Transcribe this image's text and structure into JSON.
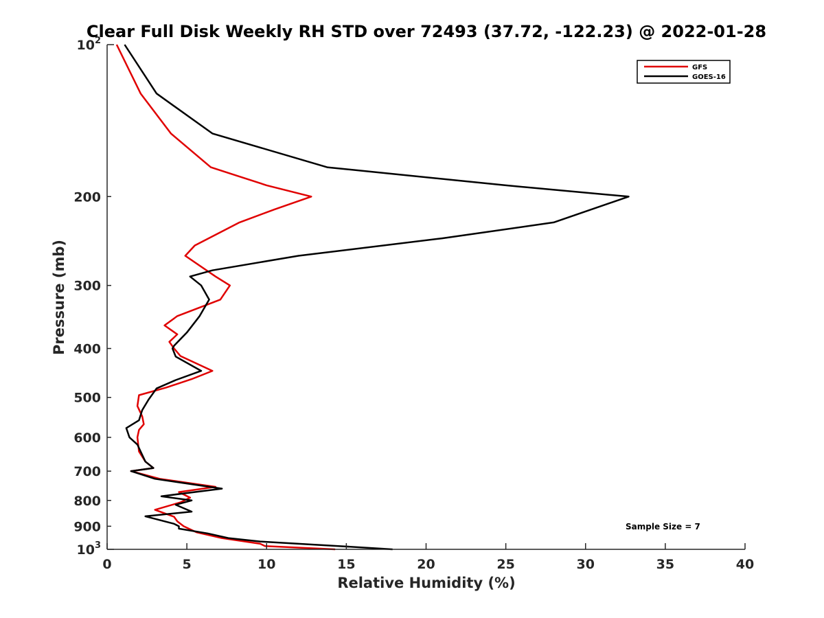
{
  "chart_data": {
    "type": "line",
    "title": "Clear Full Disk Weekly RH STD over 72493 (37.72, -122.23) @ 2022-01-28",
    "xlabel": "Relative Humidity (%)",
    "ylabel": "Pressure (mb)",
    "xlim": [
      0,
      40
    ],
    "ylim": [
      100,
      1000
    ],
    "y_scale": "log",
    "y_reversed": true,
    "grid": false,
    "legend_position": "top-right",
    "x_ticks": [
      0,
      5,
      10,
      15,
      20,
      25,
      30,
      35,
      40
    ],
    "y_ticks": [
      200,
      300,
      400,
      500,
      600,
      700,
      800,
      900
    ],
    "y_tick_labels": [
      "200",
      "300",
      "400",
      "500",
      "600",
      "700",
      "800",
      "900"
    ],
    "y_edge_labels": [
      {
        "value": 100,
        "base": "10",
        "exp": "2"
      },
      {
        "value": 1000,
        "base": "10",
        "exp": "3"
      }
    ],
    "annotation": "Sample Size = 7",
    "series": [
      {
        "name": "GFS",
        "color": "#e00000",
        "points": [
          [
            0.6,
            100
          ],
          [
            2.1,
            125
          ],
          [
            4.0,
            150
          ],
          [
            6.5,
            175
          ],
          [
            10.0,
            190
          ],
          [
            12.8,
            200
          ],
          [
            10.5,
            212
          ],
          [
            8.3,
            225
          ],
          [
            5.5,
            250
          ],
          [
            4.9,
            262
          ],
          [
            6.8,
            288
          ],
          [
            7.7,
            300
          ],
          [
            7.1,
            320
          ],
          [
            4.4,
            345
          ],
          [
            3.6,
            360
          ],
          [
            4.4,
            375
          ],
          [
            3.9,
            388
          ],
          [
            4.2,
            400
          ],
          [
            4.6,
            414
          ],
          [
            6.6,
            443
          ],
          [
            5.3,
            460
          ],
          [
            3.7,
            478
          ],
          [
            2.0,
            495
          ],
          [
            1.9,
            520
          ],
          [
            2.2,
            545
          ],
          [
            2.3,
            565
          ],
          [
            2.0,
            580
          ],
          [
            1.9,
            600
          ],
          [
            2.0,
            640
          ],
          [
            2.4,
            670
          ],
          [
            2.9,
            690
          ],
          [
            1.5,
            700
          ],
          [
            3.3,
            725
          ],
          [
            6.8,
            752
          ],
          [
            4.5,
            770
          ],
          [
            5.2,
            790
          ],
          [
            4.6,
            807
          ],
          [
            3.0,
            835
          ],
          [
            4.2,
            862
          ],
          [
            4.4,
            880
          ],
          [
            4.8,
            900
          ],
          [
            5.6,
            925
          ],
          [
            7.2,
            950
          ],
          [
            9.6,
            975
          ],
          [
            9.9,
            985
          ],
          [
            14.3,
            1000
          ]
        ]
      },
      {
        "name": "GOES-16",
        "color": "#000000",
        "points": [
          [
            1.1,
            100
          ],
          [
            3.1,
            125
          ],
          [
            6.6,
            150
          ],
          [
            13.8,
            175
          ],
          [
            25.0,
            190
          ],
          [
            32.7,
            200
          ],
          [
            28.0,
            225
          ],
          [
            21.0,
            242
          ],
          [
            12.0,
            262
          ],
          [
            6.6,
            280
          ],
          [
            5.2,
            288
          ],
          [
            5.9,
            300
          ],
          [
            6.4,
            320
          ],
          [
            5.8,
            345
          ],
          [
            5.0,
            372
          ],
          [
            4.2,
            395
          ],
          [
            4.1,
            400
          ],
          [
            4.3,
            415
          ],
          [
            5.9,
            443
          ],
          [
            4.3,
            462
          ],
          [
            3.1,
            480
          ],
          [
            2.6,
            505
          ],
          [
            2.2,
            530
          ],
          [
            2.0,
            555
          ],
          [
            1.2,
            575
          ],
          [
            1.4,
            600
          ],
          [
            1.9,
            620
          ],
          [
            2.1,
            640
          ],
          [
            2.4,
            670
          ],
          [
            2.9,
            690
          ],
          [
            1.5,
            700
          ],
          [
            3.0,
            725
          ],
          [
            7.2,
            758
          ],
          [
            3.4,
            785
          ],
          [
            5.3,
            800
          ],
          [
            4.3,
            816
          ],
          [
            5.3,
            842
          ],
          [
            2.4,
            860
          ],
          [
            4.2,
            890
          ],
          [
            4.5,
            900
          ],
          [
            4.5,
            910
          ],
          [
            6.3,
            930
          ],
          [
            7.6,
            950
          ],
          [
            9.6,
            965
          ],
          [
            14.5,
            985
          ],
          [
            17.9,
            1000
          ]
        ]
      }
    ]
  }
}
